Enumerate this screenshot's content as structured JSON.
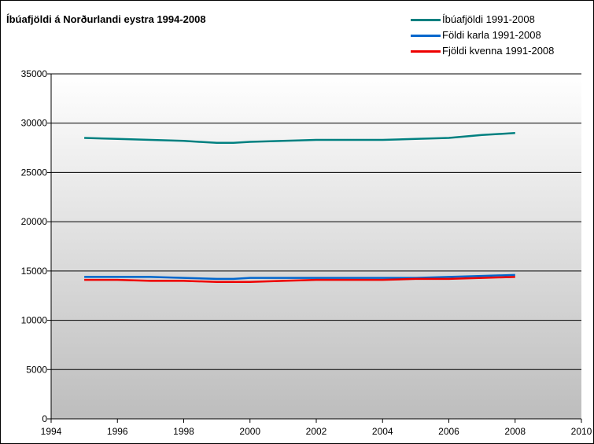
{
  "chart_data": {
    "type": "line",
    "title": "Íbúafjöldi á Norðurlandi eystra 1994-2008",
    "xlabel": "",
    "ylabel": "",
    "xlim": [
      1994,
      2010
    ],
    "ylim": [
      0,
      35000
    ],
    "x_ticks": [
      "1994",
      "1996",
      "1998",
      "2000",
      "2002",
      "2004",
      "2006",
      "2008",
      "2010"
    ],
    "y_ticks": [
      "0",
      "5000",
      "10000",
      "15000",
      "20000",
      "25000",
      "30000",
      "35000"
    ],
    "grid": true,
    "legend_position": "top-right",
    "series": [
      {
        "name": "Íbúafjöldi 1991-2008",
        "color": "#008080",
        "x": [
          1995,
          1996,
          1997,
          1998,
          1999,
          1999.5,
          2000,
          2001,
          2002,
          2003,
          2004,
          2005,
          2006,
          2007,
          2008
        ],
        "y": [
          28500,
          28400,
          28300,
          28200,
          28000,
          28000,
          28100,
          28200,
          28300,
          28300,
          28300,
          28400,
          28500,
          28800,
          29000
        ]
      },
      {
        "name": "Földi karla 1991-2008",
        "color": "#0066CC",
        "x": [
          1995,
          1996,
          1997,
          1998,
          1999,
          1999.5,
          2000,
          2001,
          2002,
          2003,
          2004,
          2005,
          2006,
          2007,
          2008
        ],
        "y": [
          14400,
          14400,
          14400,
          14300,
          14200,
          14200,
          14300,
          14300,
          14300,
          14300,
          14300,
          14300,
          14400,
          14500,
          14600
        ]
      },
      {
        "name": "Fjöldi kvenna 1991-2008",
        "color": "#EE0000",
        "x": [
          1995,
          1996,
          1997,
          1998,
          1999,
          1999.5,
          2000,
          2001,
          2002,
          2003,
          2004,
          2005,
          2006,
          2007,
          2008
        ],
        "y": [
          14100,
          14100,
          14000,
          14000,
          13900,
          13900,
          13900,
          14000,
          14100,
          14100,
          14100,
          14200,
          14200,
          14300,
          14400
        ]
      }
    ]
  }
}
